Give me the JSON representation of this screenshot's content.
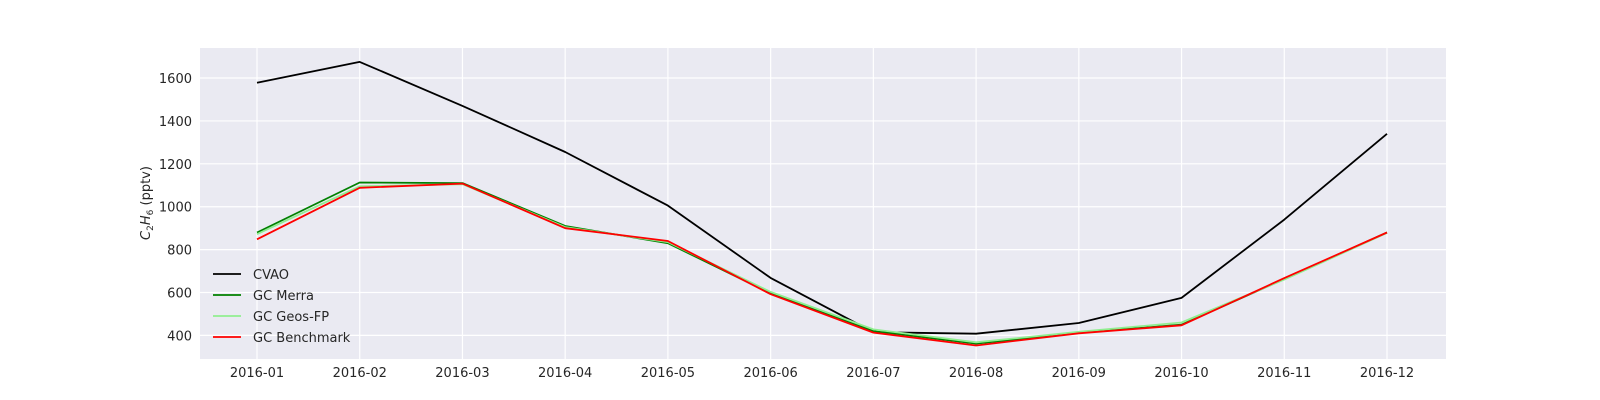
{
  "chart_data": {
    "type": "line",
    "categories": [
      "2016-01",
      "2016-02",
      "2016-03",
      "2016-04",
      "2016-05",
      "2016-06",
      "2016-07",
      "2016-08",
      "2016-09",
      "2016-10",
      "2016-11",
      "2016-12"
    ],
    "ylabel_main": "C",
    "ylabel_sub1": "2",
    "ylabel_mid": "H",
    "ylabel_sub2": "6",
    "ylabel_unit": " (pptv)",
    "ylim": [
      290,
      1740
    ],
    "yticks": [
      400,
      600,
      800,
      1000,
      1200,
      1400,
      1600
    ],
    "grid": true,
    "legend_position": "lower-left",
    "series": [
      {
        "name": "CVAO",
        "color": "#000000",
        "values": [
          1578,
          1675,
          1470,
          1255,
          1005,
          668,
          415,
          408,
          458,
          575,
          940,
          1340
        ]
      },
      {
        "name": "GC Merra",
        "color": "#008000",
        "values": [
          880,
          1113,
          1110,
          910,
          830,
          596,
          420,
          362,
          412,
          450,
          663,
          880
        ]
      },
      {
        "name": "GC Geos-FP",
        "color": "#90ee90",
        "values": [
          872,
          1095,
          1105,
          905,
          835,
          603,
          428,
          368,
          417,
          460,
          660,
          878
        ]
      },
      {
        "name": "GC Benchmark",
        "color": "#ff0000",
        "values": [
          848,
          1088,
          1108,
          900,
          840,
          592,
          413,
          353,
          410,
          447,
          667,
          880
        ]
      }
    ]
  }
}
